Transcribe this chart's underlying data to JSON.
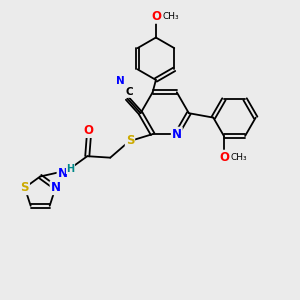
{
  "bg_color": "#ebebeb",
  "bond_color": "#000000",
  "atom_colors": {
    "N": "#0000ff",
    "O": "#ff0000",
    "S": "#ccaa00",
    "C": "#000000",
    "H": "#008888"
  },
  "font_size_atom": 8.5,
  "font_size_small": 6.5
}
